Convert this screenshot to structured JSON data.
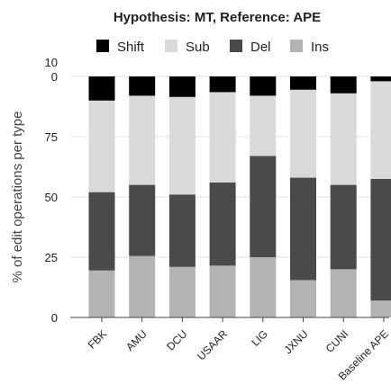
{
  "chart_data": {
    "type": "bar",
    "stacked": true,
    "title": "Hypothesis: MT, Reference: APE",
    "xlabel": "",
    "ylabel": "% of edit operations per type",
    "ylim": [
      0,
      100
    ],
    "yticks": [
      0,
      25,
      50,
      75,
      100
    ],
    "ytick_labels": [
      "0",
      "25",
      "50",
      "75",
      "10\n0"
    ],
    "grid": true,
    "legend": "top",
    "categories": [
      "FBK",
      "AMU",
      "DCU",
      "USAAR",
      "LIG",
      "JXNU",
      "CUNI",
      "Baseline APE"
    ],
    "series": [
      {
        "name": "Ins",
        "color": "#b3b3b3",
        "values": [
          19.5,
          25.5,
          21,
          21.5,
          25,
          15.5,
          20,
          7
        ]
      },
      {
        "name": "Del",
        "color": "#4a4a4a",
        "values": [
          32.5,
          29.5,
          30,
          34.5,
          42,
          42.5,
          35,
          50.5
        ]
      },
      {
        "name": "Sub",
        "color": "#d9d9d9",
        "values": [
          38,
          37,
          40.5,
          37.5,
          25,
          36.5,
          38,
          40.5
        ]
      },
      {
        "name": "Shift",
        "color": "#000000",
        "values": [
          10,
          8,
          8.5,
          6.5,
          8,
          5.5,
          7,
          2
        ]
      }
    ],
    "legend_order": [
      "Shift",
      "Sub",
      "Del",
      "Ins"
    ]
  }
}
